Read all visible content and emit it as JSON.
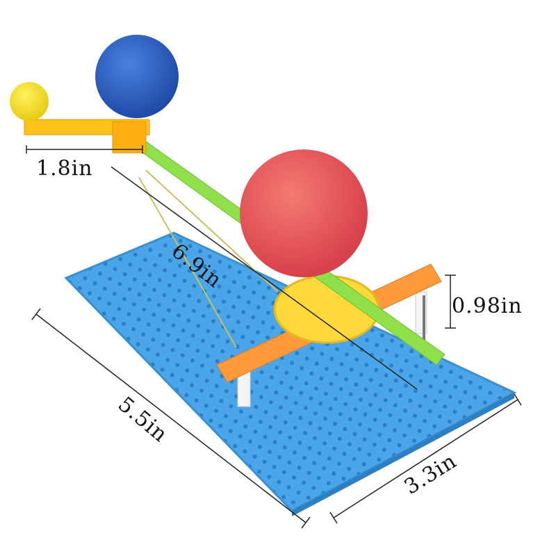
{
  "colors": {
    "base_plate": "#4aa6e8",
    "sun_ball": "#e85a5a",
    "earth_ball": "#2f62c8",
    "moon_ball": "#f2e030",
    "rod": "#8fe04a",
    "arm": "#ff9a3c",
    "disc": "#ffd83a",
    "post": "#f4f4f4"
  },
  "dimensions": {
    "arm_length": "1.8in",
    "rod_length": "6.9in",
    "post_height": "0.98in",
    "base_length": "5.5in",
    "base_width": "3.3in"
  }
}
